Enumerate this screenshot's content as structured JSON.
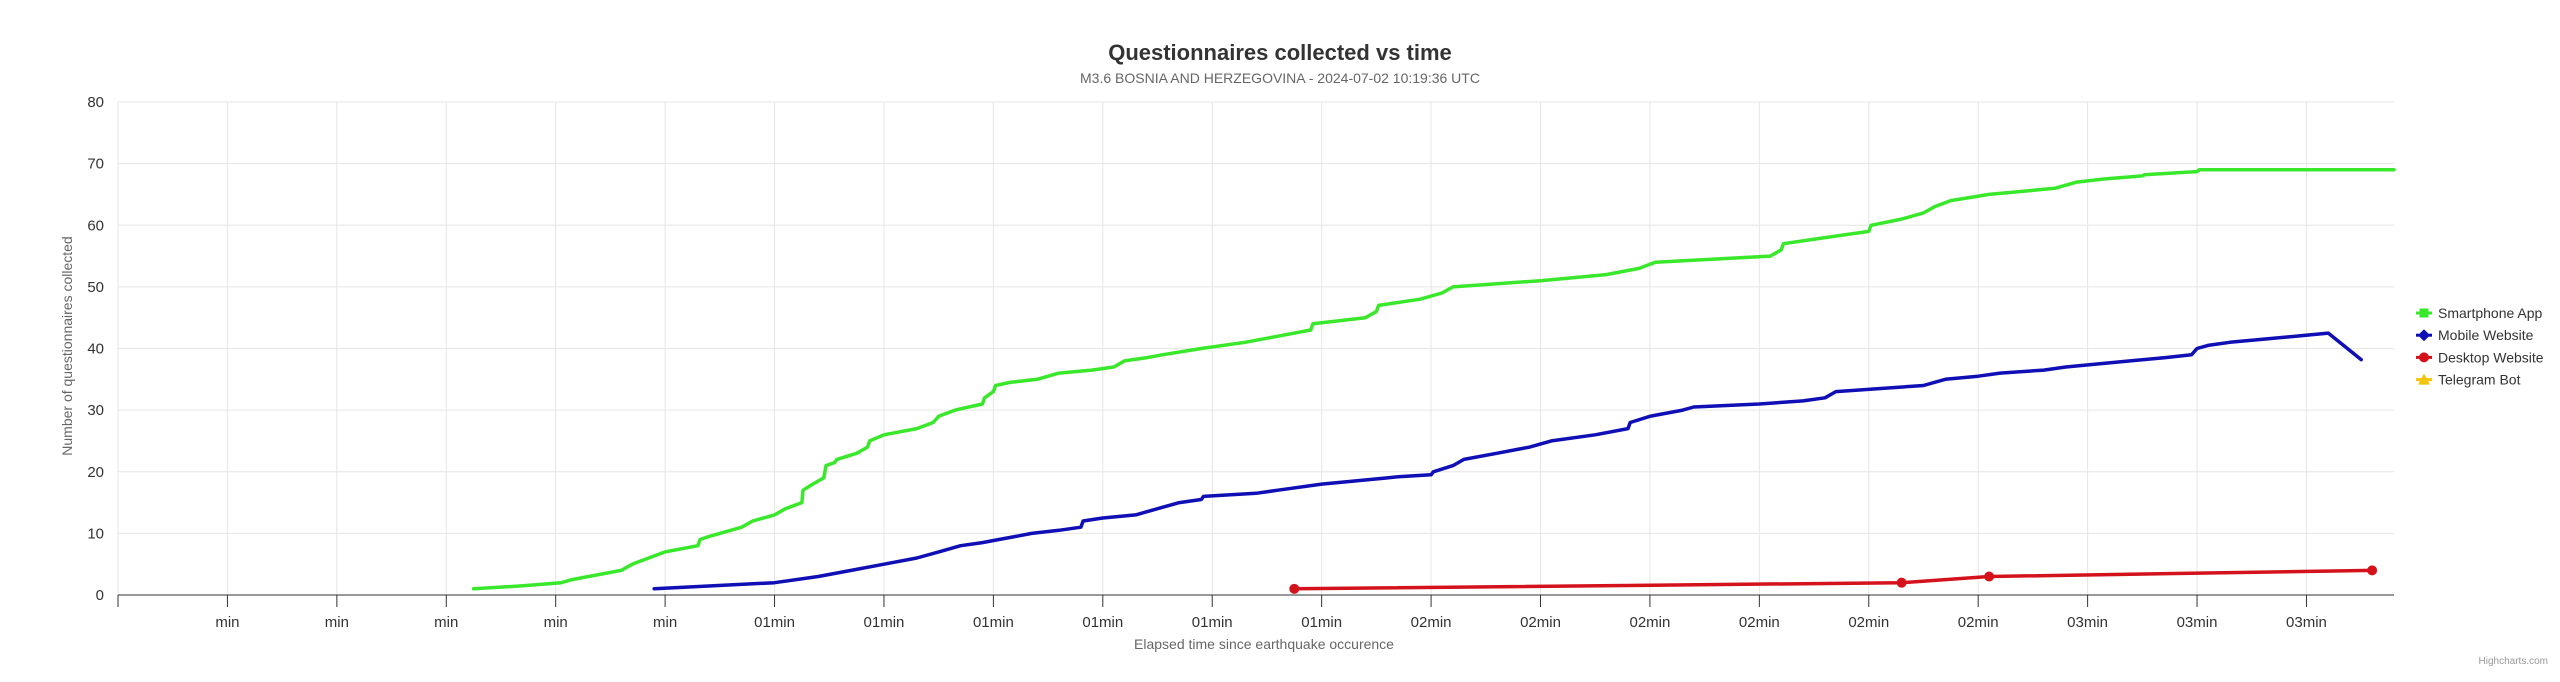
{
  "chart_data": {
    "type": "line",
    "title": "Questionnaires collected vs time",
    "subtitle": "M3.6 BOSNIA AND HERZEGOVINA - 2024-07-02 10:19:36 UTC",
    "xlabel": "Elapsed time since earthquake occurence",
    "ylabel": "Number of questionnaires collected",
    "ylim": [
      0,
      80
    ],
    "yticks": [
      0,
      10,
      20,
      30,
      40,
      50,
      60,
      70,
      80
    ],
    "xlim": [
      0,
      208
    ],
    "xticks": [
      10,
      20,
      30,
      40,
      50,
      60,
      70,
      80,
      90,
      100,
      110,
      120,
      130,
      140,
      150,
      160,
      170,
      180,
      190,
      200
    ],
    "xtick_labels": [
      "min",
      "min",
      "min",
      "min",
      "min",
      "01min",
      "01min",
      "01min",
      "01min",
      "01min",
      "01min",
      "02min",
      "02min",
      "02min",
      "02min",
      "02min",
      "02min",
      "03min",
      "03min",
      "03min"
    ],
    "grid": true,
    "legend_position": "right",
    "credits": "Highcharts.com",
    "series": [
      {
        "name": "Smartphone App",
        "color": "#39e82a",
        "marker": "square",
        "x": [
          32.5,
          37,
          40.5,
          41.5,
          43,
          46,
          47,
          48.5,
          50,
          53,
          53.2,
          54,
          55,
          57,
          58,
          60,
          61,
          62.5,
          62.6,
          63.5,
          64.5,
          64.7,
          65.5,
          65.7,
          67.5,
          68.5,
          68.7,
          70,
          73,
          74.5,
          75,
          76.5,
          79,
          79.2,
          80,
          80.2,
          81.5,
          84,
          86,
          89,
          91,
          92,
          94,
          95.5,
          99,
          103,
          106,
          109,
          109.2,
          114,
          115,
          115.2,
          119,
          121,
          122,
          130,
          136,
          139,
          140.5,
          151,
          152,
          152.2,
          156,
          160,
          160.2,
          163,
          164,
          165,
          166,
          167.5,
          171,
          177,
          178,
          179,
          181.5,
          185,
          185.2,
          188,
          190,
          190.2,
          191,
          192,
          192.2,
          194,
          197,
          202,
          206,
          208
        ],
        "y": [
          1,
          1.5,
          2,
          2.5,
          3,
          4,
          5,
          6,
          7,
          8,
          9,
          9.5,
          10,
          11,
          12,
          13,
          14,
          15,
          17,
          18,
          19,
          21,
          21.5,
          22,
          23,
          24,
          25,
          26,
          27,
          28,
          29,
          30,
          31,
          32,
          33,
          34,
          34.5,
          35,
          36,
          36.5,
          37,
          38,
          38.5,
          39,
          40,
          41,
          42,
          43,
          44,
          45,
          46,
          47,
          48,
          49,
          50,
          51,
          52,
          53,
          54,
          55,
          56,
          57,
          58,
          59,
          60,
          61,
          61.5,
          62,
          63,
          64,
          65,
          66,
          66.5,
          67,
          67.5,
          68,
          68.2,
          68.5,
          68.7,
          69,
          69,
          69,
          69,
          69,
          69,
          69,
          69,
          69
        ]
      },
      {
        "name": "Mobile Website",
        "color": "#0f0fb5",
        "marker": "diamond",
        "x": [
          49,
          60,
          64,
          67,
          70,
          73,
          75,
          77,
          79,
          80.5,
          82,
          83.5,
          86,
          88,
          88.2,
          90,
          93,
          95,
          97,
          99,
          99.2,
          104,
          106,
          110,
          113,
          116,
          117,
          120,
          120.2,
          122,
          123,
          126,
          129,
          131,
          135,
          138,
          138.2,
          140,
          143,
          144,
          150,
          154,
          156,
          157,
          165,
          167,
          170,
          172,
          176,
          178,
          184,
          187,
          189.5,
          190,
          191,
          193,
          196,
          199,
          202,
          205
        ],
        "y": [
          1,
          2,
          3,
          4,
          5,
          6,
          7,
          8,
          8.5,
          9,
          9.5,
          10,
          10.5,
          11,
          12,
          12.5,
          13,
          14,
          15,
          15.5,
          16,
          16.5,
          17,
          18,
          18.5,
          19,
          19.2,
          19.5,
          20,
          21,
          22,
          23,
          24,
          25,
          26,
          27,
          28,
          29,
          30,
          30.5,
          31,
          31.5,
          32,
          33,
          34,
          35,
          35.5,
          36,
          36.5,
          37,
          38,
          38.5,
          39,
          40,
          40.5,
          41,
          41.5,
          42,
          42.5,
          38.2
        ]
      },
      {
        "name": "Desktop Website",
        "color": "#d4121b",
        "marker": "circle",
        "x": [
          107.5,
          163,
          171,
          206
        ],
        "y": [
          1,
          2,
          3,
          4
        ]
      },
      {
        "name": "Telegram Bot",
        "color": "#f5c510",
        "marker": "triangle",
        "x": [],
        "y": []
      }
    ]
  }
}
